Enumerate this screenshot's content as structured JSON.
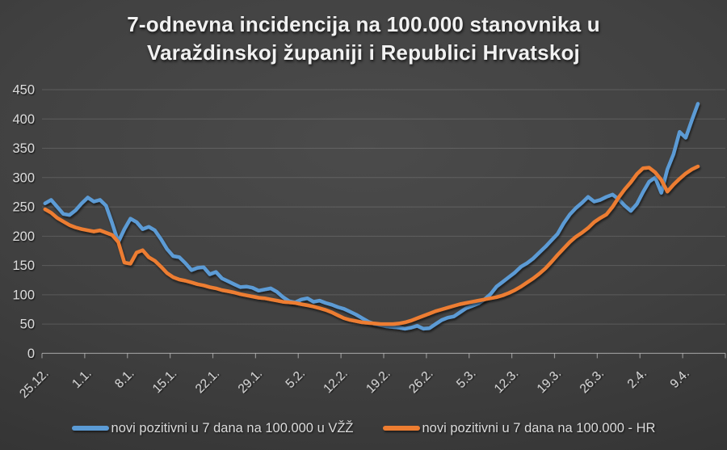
{
  "title": {
    "line1": "7-odnevna incidencija na 100.000 stanovnika u",
    "line2": "Varaždinskoj županiji i Republici Hrvatskoj"
  },
  "legend": {
    "items": [
      {
        "label": "novi pozitivni u 7 dana na 100.000 u VŽŽ",
        "color": "#5B9BD5"
      },
      {
        "label": "novi pozitivni u 7 dana na 100.000 - HR",
        "color": "#ED7D31"
      }
    ]
  },
  "colors": {
    "series_vzz": "#5B9BD5",
    "series_hr": "#ED7D31",
    "axis_text": "#d9d9d9",
    "background_center": "#4b4b4b",
    "background_edge": "#2a2a2a"
  },
  "chart_data": {
    "type": "line",
    "title": "7-odnevna incidencija na 100.000 stanovnika u Varaždinskoj županiji i Republici Hrvatskoj",
    "xlabel": "",
    "ylabel": "",
    "ylim": [
      0,
      450
    ],
    "y_ticks": [
      0,
      50,
      100,
      150,
      200,
      250,
      300,
      350,
      400,
      450
    ],
    "x_tick_labels": [
      "25.12.",
      "1.1.",
      "8.1.",
      "15.1.",
      "22.1.",
      "29.1.",
      "5.2.",
      "12.2.",
      "19.2.",
      "26.2.",
      "5.3.",
      "12.3.",
      "19.3.",
      "26.3.",
      "2.4.",
      "9.4."
    ],
    "x_total_slots": 112,
    "points_per_tick": 7,
    "grid": "horizontal",
    "legend_position": "bottom",
    "series": [
      {
        "name": "novi pozitivni u 7 dana na 100.000 u VŽŽ",
        "color": "#5B9BD5",
        "values": [
          256,
          262,
          250,
          238,
          236,
          244,
          256,
          266,
          259,
          262,
          252,
          222,
          190,
          212,
          230,
          224,
          212,
          216,
          210,
          195,
          178,
          166,
          164,
          154,
          142,
          146,
          147,
          135,
          139,
          128,
          123,
          118,
          113,
          114,
          112,
          107,
          109,
          111,
          105,
          96,
          89,
          87,
          92,
          94,
          88,
          90,
          86,
          83,
          79,
          76,
          71,
          66,
          60,
          54,
          50,
          48,
          46,
          45,
          44,
          42,
          44,
          47,
          42,
          43,
          50,
          57,
          61,
          63,
          70,
          77,
          81,
          85,
          92,
          101,
          114,
          122,
          130,
          138,
          148,
          154,
          162,
          172,
          182,
          193,
          204,
          222,
          237,
          248,
          257,
          267,
          259,
          262,
          267,
          271,
          263,
          252,
          243,
          255,
          275,
          293,
          300,
          274,
          314,
          340,
          378,
          368,
          398,
          426
        ]
      },
      {
        "name": "novi pozitivni u 7 dana na 100.000 - HR",
        "color": "#ED7D31",
        "values": [
          246,
          240,
          231,
          225,
          219,
          215,
          212,
          210,
          208,
          210,
          206,
          202,
          190,
          155,
          153,
          172,
          176,
          164,
          158,
          148,
          137,
          130,
          126,
          124,
          121,
          118,
          116,
          113,
          111,
          108,
          106,
          104,
          101,
          99,
          97,
          95,
          94,
          92,
          90,
          88,
          87,
          86,
          84,
          82,
          80,
          77,
          74,
          70,
          65,
          60,
          57,
          55,
          53,
          52,
          51,
          50,
          50,
          50,
          51,
          53,
          56,
          60,
          64,
          68,
          72,
          75,
          78,
          81,
          84,
          86,
          88,
          90,
          92,
          94,
          96,
          99,
          103,
          108,
          114,
          121,
          128,
          136,
          145,
          156,
          168,
          179,
          190,
          199,
          206,
          214,
          224,
          231,
          237,
          250,
          266,
          280,
          292,
          306,
          316,
          317,
          309,
          296,
          276,
          288,
          298,
          307,
          314,
          319
        ]
      }
    ]
  }
}
